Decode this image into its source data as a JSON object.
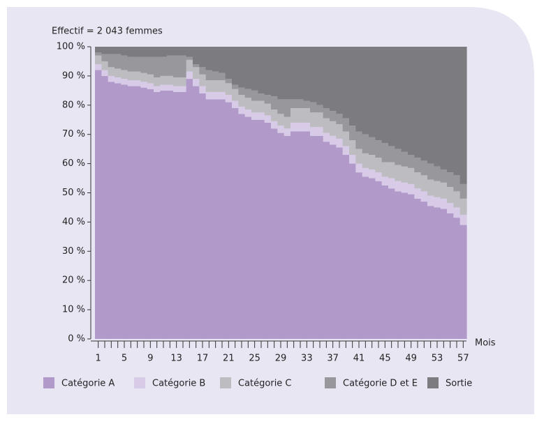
{
  "chart_data": {
    "type": "stacked-area-step",
    "title": "Effectif = 2 043 femmes",
    "x_label": "Mois",
    "categories": [
      "1",
      null,
      null,
      null,
      "5",
      null,
      null,
      null,
      "9",
      null,
      null,
      null,
      "13",
      null,
      null,
      null,
      "17",
      null,
      null,
      null,
      "21",
      null,
      null,
      null,
      "25",
      null,
      null,
      null,
      "29",
      null,
      null,
      null,
      "33",
      null,
      null,
      null,
      "37",
      null,
      null,
      null,
      "41",
      null,
      null,
      null,
      "45",
      null,
      null,
      null,
      "49",
      null,
      null,
      null,
      "53",
      null,
      null,
      null,
      "57"
    ],
    "ylim": [
      0,
      100
    ],
    "yticks": [
      {
        "value": 0,
        "label": "0 %"
      },
      {
        "value": 10,
        "label": "10 %"
      },
      {
        "value": 20,
        "label": "20 %"
      },
      {
        "value": 30,
        "label": "30 %"
      },
      {
        "value": 40,
        "label": "40 %"
      },
      {
        "value": 50,
        "label": "50 %"
      },
      {
        "value": 60,
        "label": "60 %"
      },
      {
        "value": 70,
        "label": "70 %"
      },
      {
        "value": 80,
        "label": "80 %"
      },
      {
        "value": 90,
        "label": "90 %"
      },
      {
        "value": 100,
        "label": "100 %"
      }
    ],
    "series": [
      {
        "name": "Catégorie A",
        "color": "#b199c9",
        "values": [
          92,
          90,
          88,
          87.5,
          87,
          86.5,
          86.5,
          86,
          85.5,
          84.5,
          85,
          85,
          84.5,
          84.5,
          89,
          86.5,
          84,
          82,
          82,
          82,
          81,
          79,
          77,
          76,
          75,
          75,
          74,
          72,
          70.5,
          69.5,
          71,
          71,
          71,
          69.5,
          69.5,
          67.5,
          66.5,
          65.5,
          63,
          60,
          57,
          55.5,
          55,
          54,
          52.5,
          51.5,
          50.5,
          50,
          49.5,
          48,
          47,
          45.5,
          45,
          44.5,
          43,
          41.5,
          39
        ]
      },
      {
        "name": "Catégorie B",
        "color": "#d7cbe7",
        "values": [
          2,
          2,
          2,
          2,
          2,
          2,
          2,
          2,
          2,
          2,
          2,
          2,
          2,
          2,
          2.5,
          2.5,
          2.5,
          2.5,
          2.5,
          2.5,
          2.5,
          2.5,
          2.5,
          2.5,
          2.5,
          2.5,
          2.5,
          2.5,
          2.5,
          2.5,
          3,
          3,
          3,
          3,
          3,
          3,
          3,
          3,
          3,
          3,
          3,
          3,
          3,
          3,
          3,
          3.5,
          3.5,
          3.5,
          3.5,
          3.5,
          3.5,
          3.5,
          3.5,
          3.5,
          3.5,
          3.5,
          3.5
        ]
      },
      {
        "name": "Catégorie C",
        "color": "#bdbdc1",
        "values": [
          3,
          3,
          3,
          3,
          3,
          3,
          3,
          3,
          3,
          3,
          3,
          3,
          3,
          3,
          4,
          4,
          4,
          4,
          4,
          4,
          4,
          4,
          4,
          4,
          4,
          4,
          4,
          4,
          4,
          4,
          5,
          5,
          5,
          5,
          5,
          5,
          5,
          5,
          5,
          5,
          5,
          5,
          5,
          5,
          5,
          5.5,
          5.5,
          5.5,
          5.5,
          5.5,
          5.5,
          5.5,
          5.5,
          5.5,
          5.5,
          5.5,
          5.5
        ]
      },
      {
        "name": "Catégorie D et E",
        "color": "#98989c",
        "values": [
          1,
          2.5,
          4.5,
          5,
          5,
          5,
          5,
          5.5,
          6,
          7,
          6.5,
          7,
          7.5,
          7.5,
          1,
          1,
          2.5,
          3.5,
          3,
          2.5,
          1.5,
          1.5,
          2.5,
          3,
          3.5,
          2.5,
          3,
          4.5,
          5,
          6,
          3,
          3,
          2.5,
          3.5,
          2.5,
          3.5,
          3.5,
          3.5,
          4.5,
          5,
          6,
          6.5,
          6,
          6,
          6.5,
          5.5,
          5.5,
          5,
          4.5,
          5,
          5,
          5.5,
          5,
          4.5,
          5,
          5.5,
          5
        ]
      },
      {
        "name": "Sortie",
        "color": "#7c7c80",
        "values": [
          2,
          2.5,
          2.5,
          2.5,
          3,
          3.5,
          3.5,
          3.5,
          3.5,
          3.5,
          3.5,
          3,
          3,
          3,
          3.5,
          6,
          7,
          8,
          8.5,
          9,
          11,
          13,
          14,
          14.5,
          15,
          16,
          16.5,
          17,
          18,
          18,
          18,
          18,
          18.5,
          19,
          20,
          21,
          22,
          23,
          24.5,
          27,
          29,
          30,
          31,
          32,
          33,
          34,
          35,
          36,
          37,
          38,
          39,
          40,
          41,
          42,
          43,
          44,
          47
        ]
      }
    ]
  }
}
